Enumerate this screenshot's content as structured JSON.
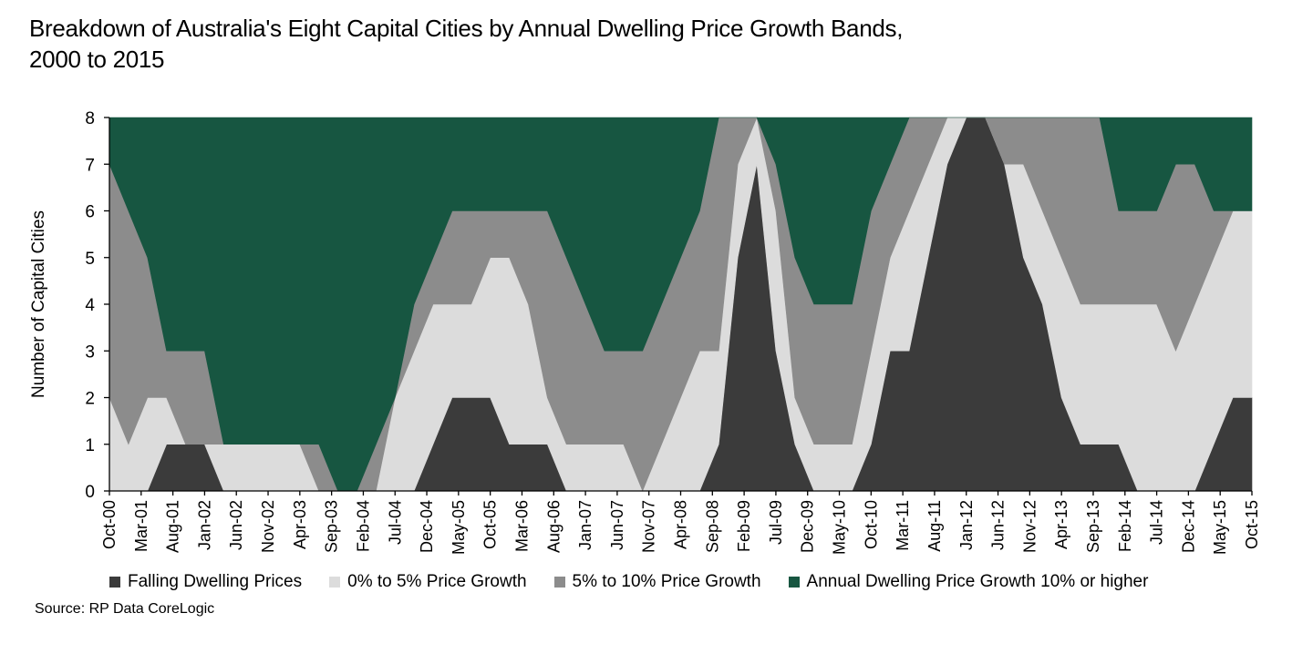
{
  "title": {
    "line1": "Breakdown of Australia's Eight Capital Cities by Annual Dwelling Price Growth Bands,",
    "line2": "2000 to 2015"
  },
  "source": "Source: RP Data CoreLogic",
  "colors": {
    "falling": "#3b3b3b",
    "growth_0_5": "#dcdcdc",
    "growth_5_10": "#8c8c8c",
    "growth_10_plus": "#175641",
    "axis": "#000000"
  },
  "chart_data": {
    "type": "area",
    "stacked": true,
    "title": "Breakdown of Australia's Eight Capital Cities by Annual Dwelling Price Growth Bands, 2000 to 2015",
    "xlabel": "",
    "ylabel": "Number of Capital Cities",
    "ylim": [
      0,
      8
    ],
    "yticks": [
      0,
      1,
      2,
      3,
      4,
      5,
      6,
      7,
      8
    ],
    "grid": false,
    "legend_position": "bottom",
    "x_tick_labels": [
      "Oct-00",
      "Mar-01",
      "Aug-01",
      "Jan-02",
      "Jun-02",
      "Nov-02",
      "Apr-03",
      "Sep-03",
      "Feb-04",
      "Jul-04",
      "Dec-04",
      "May-05",
      "Oct-05",
      "Mar-06",
      "Aug-06",
      "Jan-07",
      "Jun-07",
      "Nov-07",
      "Apr-08",
      "Sep-08",
      "Feb-09",
      "Jul-09",
      "Dec-09",
      "May-10",
      "Oct-10",
      "Mar-11",
      "Aug-11",
      "Jan-12",
      "Jun-12",
      "Nov-12",
      "Apr-13",
      "Sep-13",
      "Feb-14",
      "Jul-14",
      "Dec-14",
      "May-15",
      "Oct-15"
    ],
    "x": [
      "Oct-00",
      "Jan-01",
      "Apr-01",
      "Jul-01",
      "Oct-01",
      "Jan-02",
      "Apr-02",
      "Jul-02",
      "Oct-02",
      "Jan-03",
      "Apr-03",
      "Jul-03",
      "Oct-03",
      "Jan-04",
      "Apr-04",
      "Jul-04",
      "Oct-04",
      "Jan-05",
      "Apr-05",
      "Jul-05",
      "Oct-05",
      "Jan-06",
      "Apr-06",
      "Jul-06",
      "Oct-06",
      "Jan-07",
      "Apr-07",
      "Jul-07",
      "Oct-07",
      "Jan-08",
      "Apr-08",
      "Jul-08",
      "Oct-08",
      "Jan-09",
      "Apr-09",
      "Jul-09",
      "Oct-09",
      "Jan-10",
      "Apr-10",
      "Jul-10",
      "Oct-10",
      "Jan-11",
      "Apr-11",
      "Jul-11",
      "Oct-11",
      "Jan-12",
      "Apr-12",
      "Jul-12",
      "Oct-12",
      "Jan-13",
      "Apr-13",
      "Jul-13",
      "Oct-13",
      "Jan-14",
      "Apr-14",
      "Jul-14",
      "Oct-14",
      "Jan-15",
      "Apr-15",
      "Jul-15",
      "Oct-15"
    ],
    "series": [
      {
        "name": "Falling Dwelling Prices",
        "values": [
          0,
          0,
          0,
          1,
          1,
          1,
          0,
          0,
          0,
          0,
          0,
          0,
          0,
          0,
          0,
          0,
          0,
          1,
          2,
          2,
          2,
          1,
          1,
          1,
          0,
          0,
          0,
          0,
          0,
          0,
          0,
          0,
          1,
          5,
          7,
          3,
          1,
          0,
          0,
          0,
          1,
          3,
          3,
          5,
          7,
          8,
          8,
          7,
          5,
          4,
          2,
          1,
          1,
          1,
          0,
          0,
          0,
          0,
          1,
          2,
          2
        ]
      },
      {
        "name": "0% to 5% Price Growth",
        "values": [
          2,
          1,
          2,
          1,
          0,
          0,
          1,
          1,
          1,
          1,
          1,
          0,
          0,
          0,
          0,
          2,
          3,
          3,
          2,
          2,
          3,
          4,
          3,
          1,
          1,
          1,
          1,
          1,
          0,
          1,
          2,
          3,
          2,
          2,
          1,
          3,
          1,
          1,
          1,
          1,
          2,
          2,
          3,
          2,
          1,
          0,
          0,
          0,
          2,
          2,
          3,
          3,
          3,
          3,
          4,
          4,
          3,
          4,
          4,
          4,
          4
        ]
      },
      {
        "name": "5% to 10% Price Growth",
        "values": [
          5,
          5,
          3,
          1,
          2,
          2,
          0,
          0,
          0,
          0,
          0,
          1,
          0,
          0,
          1,
          0,
          1,
          1,
          2,
          2,
          1,
          1,
          2,
          4,
          4,
          3,
          2,
          2,
          3,
          3,
          3,
          3,
          5,
          1,
          0,
          1,
          3,
          3,
          3,
          3,
          3,
          2,
          2,
          1,
          0,
          0,
          0,
          1,
          1,
          2,
          3,
          4,
          4,
          2,
          2,
          2,
          4,
          3,
          1,
          0,
          0
        ]
      },
      {
        "name": "Annual Dwelling Price Growth 10% or higher",
        "values": [
          1,
          2,
          3,
          5,
          5,
          5,
          7,
          7,
          7,
          7,
          7,
          7,
          8,
          8,
          7,
          6,
          4,
          3,
          2,
          2,
          2,
          2,
          2,
          2,
          3,
          4,
          5,
          5,
          5,
          4,
          3,
          2,
          0,
          0,
          0,
          1,
          3,
          4,
          4,
          4,
          2,
          1,
          0,
          0,
          0,
          0,
          0,
          0,
          0,
          0,
          0,
          0,
          0,
          2,
          2,
          2,
          1,
          1,
          2,
          2,
          2
        ]
      }
    ]
  }
}
